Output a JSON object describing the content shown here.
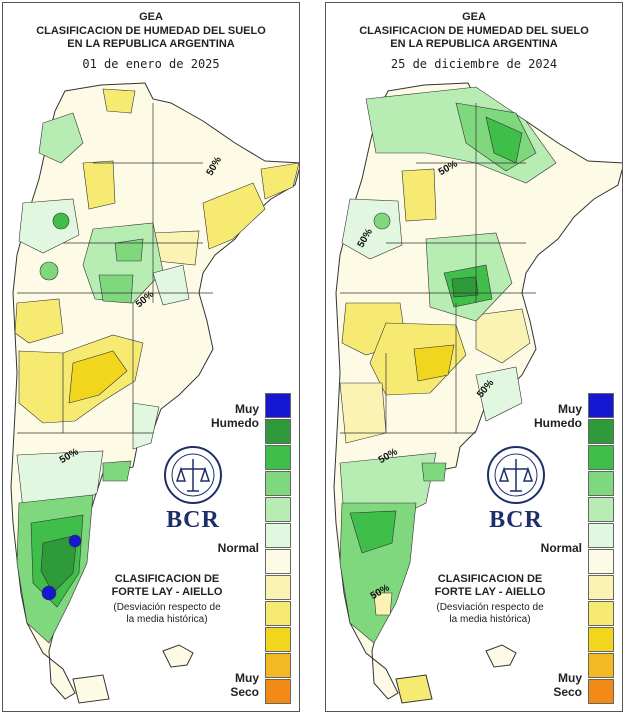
{
  "header": {
    "line1": "GEA",
    "line2": "CLASIFICACION DE HUMEDAD DEL SUELO",
    "line3": "EN LA REPUBLICA ARGENTINA"
  },
  "maps": [
    {
      "date": "01 de enero de 2025",
      "contours": [
        "50%",
        "50%",
        "50%"
      ]
    },
    {
      "date": "25 de diciembre de 2024",
      "contours": [
        "50%",
        "50%",
        "50%",
        "50%",
        "50%"
      ]
    }
  ],
  "legend": {
    "wet_label_line1": "Muy",
    "wet_label_line2": "Humedo",
    "normal_label": "Normal",
    "dry_label_line1": "Muy",
    "dry_label_line2": "Seco",
    "colors": [
      "#1518d0",
      "#2f9a3a",
      "#3fbe4a",
      "#7fd87e",
      "#b7ecb3",
      "#e2f7df",
      "#fdfbe6",
      "#fbf3b3",
      "#f6ea72",
      "#f2d61d",
      "#f4b822",
      "#f28b16",
      "#f01c14"
    ]
  },
  "logo": {
    "org": "BCR"
  },
  "classification": {
    "title_line1": "CLASIFICACION DE",
    "title_line2": "FORTE LAY - AIELLO",
    "subtitle_line1": "(Desviación respecto de",
    "subtitle_line2": "la media histórica)"
  }
}
